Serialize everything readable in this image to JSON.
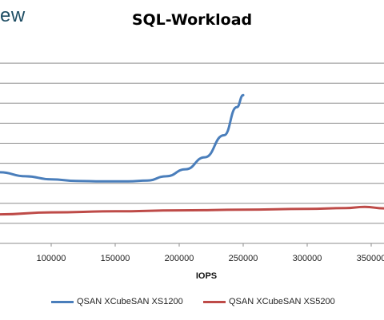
{
  "header": {
    "brand_text": "ew"
  },
  "chart_data": {
    "type": "line",
    "title": "SQL-Workload",
    "xlabel": "IOPS",
    "ylabel": "",
    "xlim": [
      60000,
      360000
    ],
    "x_ticks": [
      "100000",
      "150000",
      "200000",
      "250000",
      "300000",
      "350000"
    ],
    "x_tick_values": [
      100000,
      150000,
      200000,
      250000,
      300000,
      350000
    ],
    "ylim": [
      0,
      10
    ],
    "y_gridlines": [
      1,
      2,
      3,
      4,
      5,
      6,
      7,
      8,
      9
    ],
    "grid": true,
    "legend_position": "bottom",
    "series": [
      {
        "name": "QSAN XCubeSAN XS1200",
        "color": "#4a7ebb",
        "points": [
          [
            60000,
            3.55
          ],
          [
            80000,
            3.35
          ],
          [
            100000,
            3.2
          ],
          [
            120000,
            3.12
          ],
          [
            140000,
            3.1
          ],
          [
            160000,
            3.1
          ],
          [
            175000,
            3.14
          ],
          [
            190000,
            3.35
          ],
          [
            205000,
            3.7
          ],
          [
            220000,
            4.3
          ],
          [
            235000,
            5.4
          ],
          [
            245000,
            6.8
          ],
          [
            250000,
            7.4
          ]
        ]
      },
      {
        "name": "QSAN XCubeSAN XS5200",
        "color": "#be4b48",
        "points": [
          [
            60000,
            1.45
          ],
          [
            100000,
            1.55
          ],
          [
            150000,
            1.6
          ],
          [
            200000,
            1.65
          ],
          [
            250000,
            1.68
          ],
          [
            300000,
            1.72
          ],
          [
            330000,
            1.76
          ],
          [
            345000,
            1.82
          ],
          [
            360000,
            1.75
          ]
        ]
      }
    ]
  }
}
